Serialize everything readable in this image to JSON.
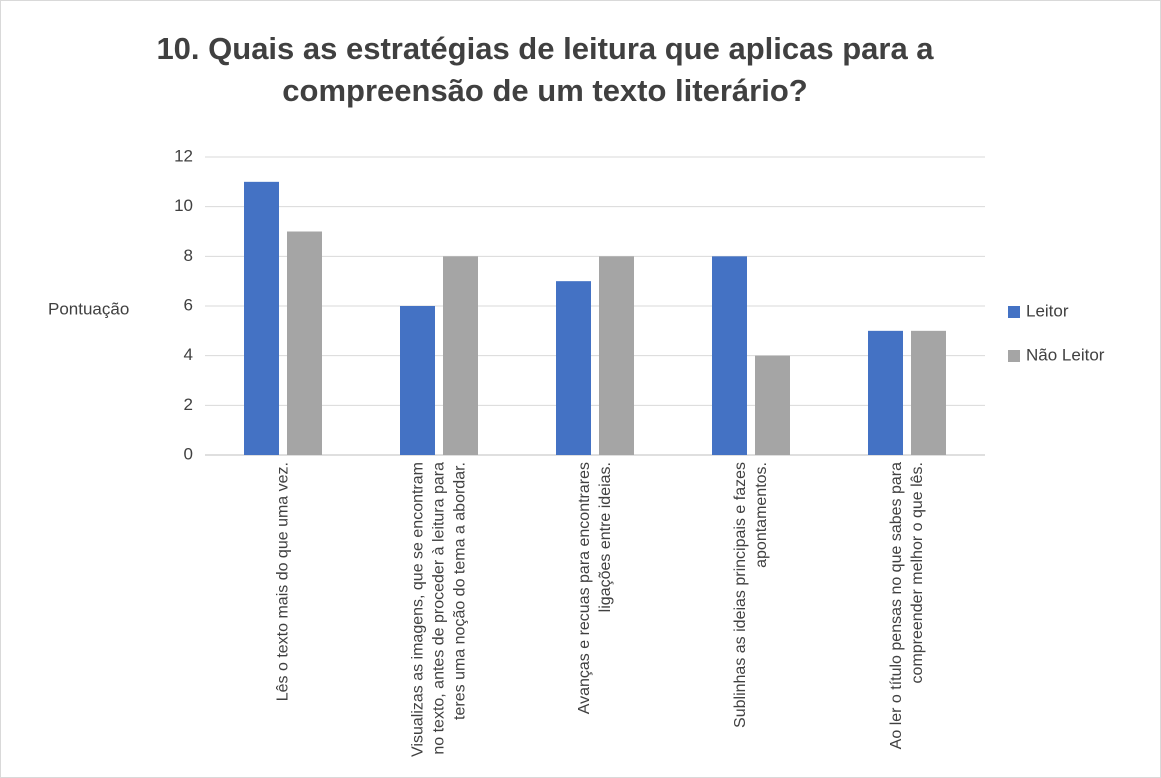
{
  "chart_data": {
    "type": "bar",
    "title": "10. Quais as estratégias de leitura que aplicas para a compreensão de um texto literário?",
    "y_label": "Pontuação",
    "categories": [
      "Lês o texto mais do que uma vez.",
      "Visualizas as imagens, que se encontram no texto, antes de proceder à leitura para teres uma noção do tema a abordar.",
      "Avanças e recuas para encontrares ligações entre ideias.",
      "Sublinhas as ideias principais e fazes apontamentos.",
      "Ao ler o título pensas no que sabes para compreender melhor o que lês."
    ],
    "series": [
      {
        "name": "Leitor",
        "color": "#4472c4",
        "values": [
          11,
          6,
          7,
          8,
          5
        ]
      },
      {
        "name": "Não Leitor",
        "color": "#a5a5a5",
        "values": [
          9,
          8,
          8,
          4,
          5
        ]
      }
    ],
    "ylim": [
      0,
      12
    ],
    "yticks": [
      0,
      2,
      4,
      6,
      8,
      10,
      12
    ],
    "grid": true,
    "legend": "right"
  }
}
